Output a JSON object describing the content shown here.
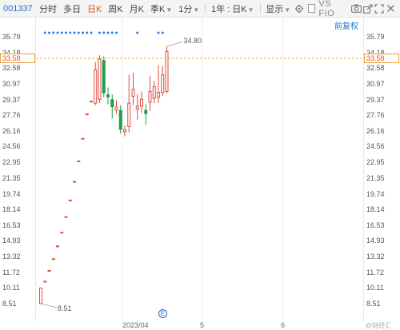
{
  "toolbar": {
    "stock_code": "001337",
    "period_tabs": [
      {
        "label": "分时",
        "active": false
      },
      {
        "label": "多日",
        "active": false
      },
      {
        "label": "日K",
        "active": true
      },
      {
        "label": "周K",
        "active": false
      },
      {
        "label": "月K",
        "active": false
      },
      {
        "label": "季K",
        "active": false,
        "dropdown": true
      },
      {
        "label": "1分",
        "active": false,
        "dropdown": true
      }
    ],
    "range_label": "1年 : 日K",
    "display_label": "显示",
    "compare_label": "VS FIO",
    "icons": [
      "gear-icon",
      "camera-icon",
      "share-icon",
      "expand-icon",
      "close-icon"
    ]
  },
  "fuquan_label": "前复权",
  "watermark": "@财经汇",
  "price_axis": {
    "ticks": [
      "35.79",
      "34.18",
      "32.58",
      "30.97",
      "29.37",
      "27.76",
      "26.16",
      "24.56",
      "22.95",
      "21.35",
      "19.74",
      "18.14",
      "16.53",
      "14.93",
      "13.32",
      "11.72",
      "10.11",
      "8.51"
    ],
    "current_price": "33.58"
  },
  "date_axis": {
    "labels": [
      "2023/04",
      "5",
      "6"
    ]
  },
  "chart_data": {
    "type": "candlestick",
    "ylim": [
      8.51,
      35.79
    ],
    "annotations": [
      {
        "text": "34.80",
        "value": 34.8
      },
      {
        "text": "8.51",
        "value": 8.51
      }
    ],
    "reference_line": 33.58,
    "up_color": "#e04b3c",
    "down_color": "#1e9e4a",
    "candles": [
      {
        "o": 8.51,
        "c": 10.11,
        "h": 10.11,
        "l": 8.51
      },
      {
        "o": 10.8,
        "c": 10.8,
        "h": 10.8,
        "l": 10.8
      },
      {
        "o": 11.9,
        "c": 11.9,
        "h": 11.9,
        "l": 11.9
      },
      {
        "o": 13.1,
        "c": 13.1,
        "h": 13.1,
        "l": 13.1
      },
      {
        "o": 14.4,
        "c": 14.4,
        "h": 14.4,
        "l": 14.4
      },
      {
        "o": 15.8,
        "c": 15.8,
        "h": 15.8,
        "l": 15.8
      },
      {
        "o": 17.4,
        "c": 17.4,
        "h": 17.4,
        "l": 17.4
      },
      {
        "o": 19.1,
        "c": 19.1,
        "h": 19.1,
        "l": 19.1
      },
      {
        "o": 21.0,
        "c": 21.0,
        "h": 21.0,
        "l": 21.0
      },
      {
        "o": 23.1,
        "c": 23.1,
        "h": 23.1,
        "l": 23.1
      },
      {
        "o": 25.4,
        "c": 25.4,
        "h": 25.4,
        "l": 25.4
      },
      {
        "o": 27.9,
        "c": 27.9,
        "h": 27.9,
        "l": 27.9
      },
      {
        "o": 29.2,
        "c": 29.2,
        "h": 29.2,
        "l": 29.2
      },
      {
        "o": 29.0,
        "c": 32.4,
        "h": 33.2,
        "l": 28.8
      },
      {
        "o": 29.4,
        "c": 33.5,
        "h": 33.9,
        "l": 29.0
      },
      {
        "o": 33.4,
        "c": 30.0,
        "h": 33.8,
        "l": 29.6
      },
      {
        "o": 29.9,
        "c": 29.6,
        "h": 30.6,
        "l": 28.9
      },
      {
        "o": 29.4,
        "c": 28.6,
        "h": 29.9,
        "l": 27.4
      },
      {
        "o": 28.3,
        "c": 28.6,
        "h": 29.3,
        "l": 27.9
      },
      {
        "o": 28.3,
        "c": 26.3,
        "h": 28.8,
        "l": 25.9
      },
      {
        "o": 26.1,
        "c": 26.3,
        "h": 26.7,
        "l": 25.6
      },
      {
        "o": 26.6,
        "c": 29.0,
        "h": 31.9,
        "l": 26.0
      },
      {
        "o": 29.7,
        "c": 30.4,
        "h": 32.1,
        "l": 28.8
      },
      {
        "o": 28.4,
        "c": 28.7,
        "h": 29.9,
        "l": 27.3
      },
      {
        "o": 28.7,
        "c": 29.4,
        "h": 30.2,
        "l": 28.0
      },
      {
        "o": 28.3,
        "c": 27.9,
        "h": 28.9,
        "l": 26.8
      },
      {
        "o": 29.1,
        "c": 30.2,
        "h": 31.8,
        "l": 28.2
      },
      {
        "o": 29.5,
        "c": 30.7,
        "h": 31.3,
        "l": 29.0
      },
      {
        "o": 29.6,
        "c": 30.1,
        "h": 32.9,
        "l": 29.0
      },
      {
        "o": 30.1,
        "c": 31.9,
        "h": 32.8,
        "l": 29.7
      },
      {
        "o": 30.2,
        "c": 34.3,
        "h": 34.8,
        "l": 30.0
      }
    ],
    "marker_groups": [
      {
        "from": 1,
        "to": 12
      },
      {
        "from": 14,
        "to": 18
      },
      {
        "from": 23,
        "to": 23
      },
      {
        "from": 28,
        "to": 29
      }
    ]
  }
}
